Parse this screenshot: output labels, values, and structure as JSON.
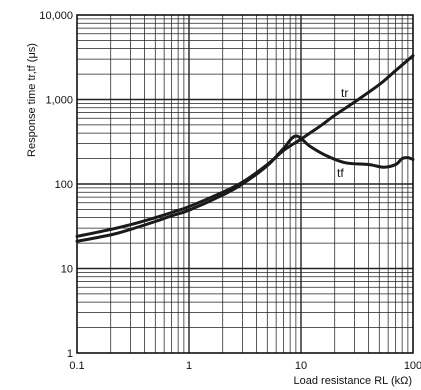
{
  "chart_data": {
    "type": "line",
    "xlabel": "Load resistance RL (kΩ)",
    "ylabel": "Response time tr,tf  (μs)",
    "x_scale": "log",
    "y_scale": "log",
    "xlim": [
      0.1,
      100
    ],
    "ylim": [
      1,
      10000
    ],
    "x_ticks": [
      {
        "value": 0.1,
        "label": "0.1"
      },
      {
        "value": 1,
        "label": "1"
      },
      {
        "value": 10,
        "label": "10"
      },
      {
        "value": 100,
        "label": "100"
      }
    ],
    "y_ticks": [
      {
        "value": 1,
        "label": "1"
      },
      {
        "value": 10,
        "label": "10"
      },
      {
        "value": 100,
        "label": "100"
      },
      {
        "value": 1000,
        "label": "1,000"
      },
      {
        "value": 10000,
        "label": "10,000"
      }
    ],
    "grid": true,
    "series": [
      {
        "name": "tr",
        "color": "#1a1a1a",
        "points": [
          [
            0.1,
            24
          ],
          [
            0.2,
            29
          ],
          [
            0.3,
            33
          ],
          [
            0.5,
            40
          ],
          [
            0.7,
            46
          ],
          [
            1,
            54
          ],
          [
            2,
            80
          ],
          [
            3,
            105
          ],
          [
            5,
            170
          ],
          [
            7,
            250
          ],
          [
            10,
            340
          ],
          [
            15,
            490
          ],
          [
            20,
            650
          ],
          [
            30,
            930
          ],
          [
            50,
            1500
          ],
          [
            70,
            2200
          ],
          [
            100,
            3300
          ]
        ]
      },
      {
        "name": "tf",
        "color": "#1a1a1a",
        "points": [
          [
            0.1,
            21
          ],
          [
            0.2,
            25
          ],
          [
            0.3,
            29
          ],
          [
            0.5,
            36
          ],
          [
            0.7,
            42
          ],
          [
            1,
            49
          ],
          [
            2,
            74
          ],
          [
            3,
            100
          ],
          [
            5,
            165
          ],
          [
            7,
            265
          ],
          [
            9,
            370
          ],
          [
            12,
            280
          ],
          [
            17,
            215
          ],
          [
            25,
            178
          ],
          [
            40,
            170
          ],
          [
            55,
            158
          ],
          [
            70,
            170
          ],
          [
            80,
            200
          ],
          [
            90,
            205
          ],
          [
            100,
            195
          ]
        ]
      }
    ]
  }
}
